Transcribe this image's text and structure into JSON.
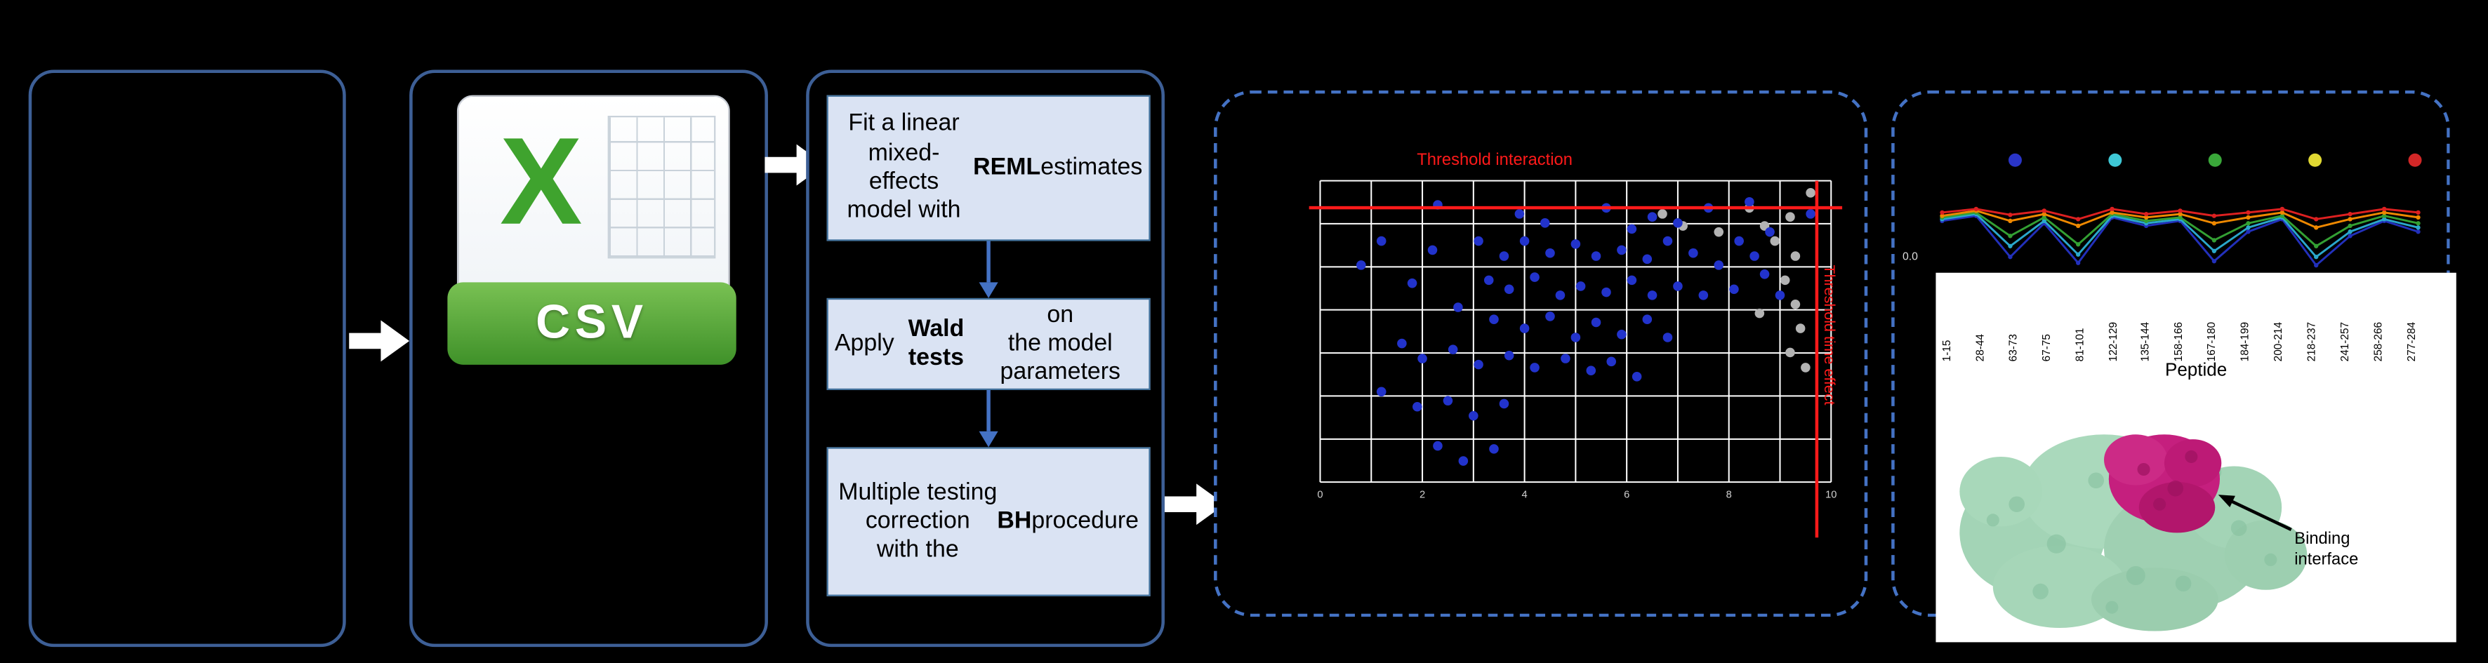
{
  "colors": {
    "background": "#000000",
    "panel_border": "#3d5f96",
    "dashed_border": "#4472c4",
    "step_fill": "#dae3f3",
    "step_border": "#41719c",
    "flow_arrow": "#ffffff",
    "connector_arrow": "#4472c4",
    "threshold_red": "#ff1a1a",
    "csv_green": "#3f9129",
    "protein_green": "#a3d4b6",
    "protein_magenta": "#c51f7e"
  },
  "csv": {
    "x_letter": "X",
    "label": "CSV"
  },
  "pipeline": {
    "steps": [
      {
        "pre": "Fit a linear mixed-\neffects model with\n",
        "bold": "REML",
        "post": " estimates"
      },
      {
        "pre": "Apply ",
        "bold": "Wald tests",
        "post": " on\nthe model parameters"
      },
      {
        "pre": "Multiple testing\ncorrection\nwith the ",
        "bold": "BH",
        "post": " procedure"
      }
    ]
  },
  "chart_data": [
    {
      "type": "scatter",
      "title": "Threshold interaction",
      "threshold_v_label": "Threshold time effect",
      "x_ticks": [
        "0",
        "2",
        "4",
        "6",
        "8",
        "10"
      ],
      "threshold_h_pct_from_top": 8.4,
      "threshold_v_pct_from_left": 96.9,
      "grid": {
        "cols": 10,
        "rows": 7,
        "color": "#ffffff"
      },
      "series": [
        {
          "name": "gray-points",
          "color": "#b3b3b3",
          "points_pct": [
            [
              84,
              9
            ],
            [
              87,
              15
            ],
            [
              89,
              20
            ],
            [
              92,
              12
            ],
            [
              93,
              25
            ],
            [
              91,
              33
            ],
            [
              93,
              41
            ],
            [
              94,
              49
            ],
            [
              92,
              57
            ],
            [
              95,
              62
            ],
            [
              71,
              15
            ],
            [
              78,
              17
            ],
            [
              67,
              11
            ],
            [
              96,
              4
            ],
            [
              86,
              44
            ]
          ]
        },
        {
          "name": "blue-points",
          "color": "#2233cc",
          "points_pct": [
            [
              23,
              8
            ],
            [
              39,
              11
            ],
            [
              56,
              9
            ],
            [
              65,
              12
            ],
            [
              76,
              9
            ],
            [
              84,
              7
            ],
            [
              96,
              11
            ],
            [
              12,
              20
            ],
            [
              22,
              23
            ],
            [
              31,
              20
            ],
            [
              36,
              25
            ],
            [
              40,
              20
            ],
            [
              45,
              24
            ],
            [
              50,
              21
            ],
            [
              54,
              25
            ],
            [
              59,
              23
            ],
            [
              64,
              26
            ],
            [
              68,
              20
            ],
            [
              73,
              24
            ],
            [
              78,
              28
            ],
            [
              33,
              33
            ],
            [
              37,
              36
            ],
            [
              42,
              32
            ],
            [
              47,
              38
            ],
            [
              51,
              35
            ],
            [
              56,
              37
            ],
            [
              61,
              33
            ],
            [
              65,
              38
            ],
            [
              70,
              35
            ],
            [
              75,
              38
            ],
            [
              81,
              36
            ],
            [
              34,
              46
            ],
            [
              40,
              49
            ],
            [
              45,
              45
            ],
            [
              50,
              52
            ],
            [
              54,
              47
            ],
            [
              59,
              51
            ],
            [
              64,
              46
            ],
            [
              68,
              52
            ],
            [
              16,
              54
            ],
            [
              20,
              59
            ],
            [
              26,
              56
            ],
            [
              31,
              61
            ],
            [
              37,
              58
            ],
            [
              42,
              62
            ],
            [
              48,
              59
            ],
            [
              53,
              63
            ],
            [
              57,
              60
            ],
            [
              62,
              65
            ],
            [
              12,
              70
            ],
            [
              19,
              75
            ],
            [
              25,
              73
            ],
            [
              30,
              78
            ],
            [
              36,
              74
            ],
            [
              23,
              88
            ],
            [
              28,
              93
            ],
            [
              34,
              89
            ],
            [
              82,
              20
            ],
            [
              85,
              25
            ],
            [
              87,
              31
            ],
            [
              88,
              17
            ],
            [
              90,
              38
            ],
            [
              18,
              34
            ],
            [
              27,
              42
            ],
            [
              44,
              14
            ],
            [
              70,
              14
            ],
            [
              61,
              16
            ],
            [
              8,
              28
            ]
          ]
        }
      ]
    },
    {
      "type": "line",
      "y_tick_label": "0.0",
      "xlabel": "Peptide",
      "legend_dot_colors": [
        "#2a35c8",
        "#3fc8d6",
        "#3aa83a",
        "#e0d832",
        "#d22727"
      ],
      "x_categories": [
        "1-15",
        "28-44",
        "63-73",
        "67-75",
        "81-101",
        "122-129",
        "135-144",
        "158-166",
        "167-180",
        "184-199",
        "200-214",
        "218-237",
        "241-257",
        "258-266",
        "277-284"
      ],
      "series": [
        {
          "name": "blue-line",
          "color": "#2230bb",
          "values": [
            0.58,
            0.64,
            0.15,
            0.55,
            0.08,
            0.62,
            0.52,
            0.58,
            0.1,
            0.45,
            0.6,
            0.05,
            0.4,
            0.58,
            0.45
          ]
        },
        {
          "name": "teal-line",
          "color": "#2aa7cc",
          "values": [
            0.6,
            0.66,
            0.28,
            0.58,
            0.18,
            0.64,
            0.55,
            0.6,
            0.22,
            0.5,
            0.62,
            0.15,
            0.45,
            0.6,
            0.5
          ]
        },
        {
          "name": "green-line",
          "color": "#33a033",
          "values": [
            0.62,
            0.68,
            0.4,
            0.62,
            0.3,
            0.66,
            0.58,
            0.62,
            0.35,
            0.55,
            0.64,
            0.28,
            0.52,
            0.64,
            0.55
          ]
        },
        {
          "name": "orange-line",
          "color": "#ee8800",
          "values": [
            0.64,
            0.7,
            0.58,
            0.66,
            0.52,
            0.68,
            0.62,
            0.66,
            0.55,
            0.62,
            0.68,
            0.5,
            0.6,
            0.68,
            0.62
          ]
        },
        {
          "name": "red-line",
          "color": "#dd2020",
          "values": [
            0.68,
            0.72,
            0.65,
            0.7,
            0.6,
            0.72,
            0.66,
            0.7,
            0.64,
            0.68,
            0.72,
            0.6,
            0.66,
            0.72,
            0.68
          ]
        }
      ]
    }
  ],
  "peptide": {
    "labels": [
      "1-15",
      "28-44",
      "63-73",
      "67-75",
      "81-101",
      "122-129",
      "135-144",
      "158-166",
      "167-180",
      "184-199",
      "200-214",
      "218-237",
      "241-257",
      "258-266",
      "277-284"
    ],
    "axis_label": "Peptide",
    "binding_label": "Binding\ninterface"
  }
}
